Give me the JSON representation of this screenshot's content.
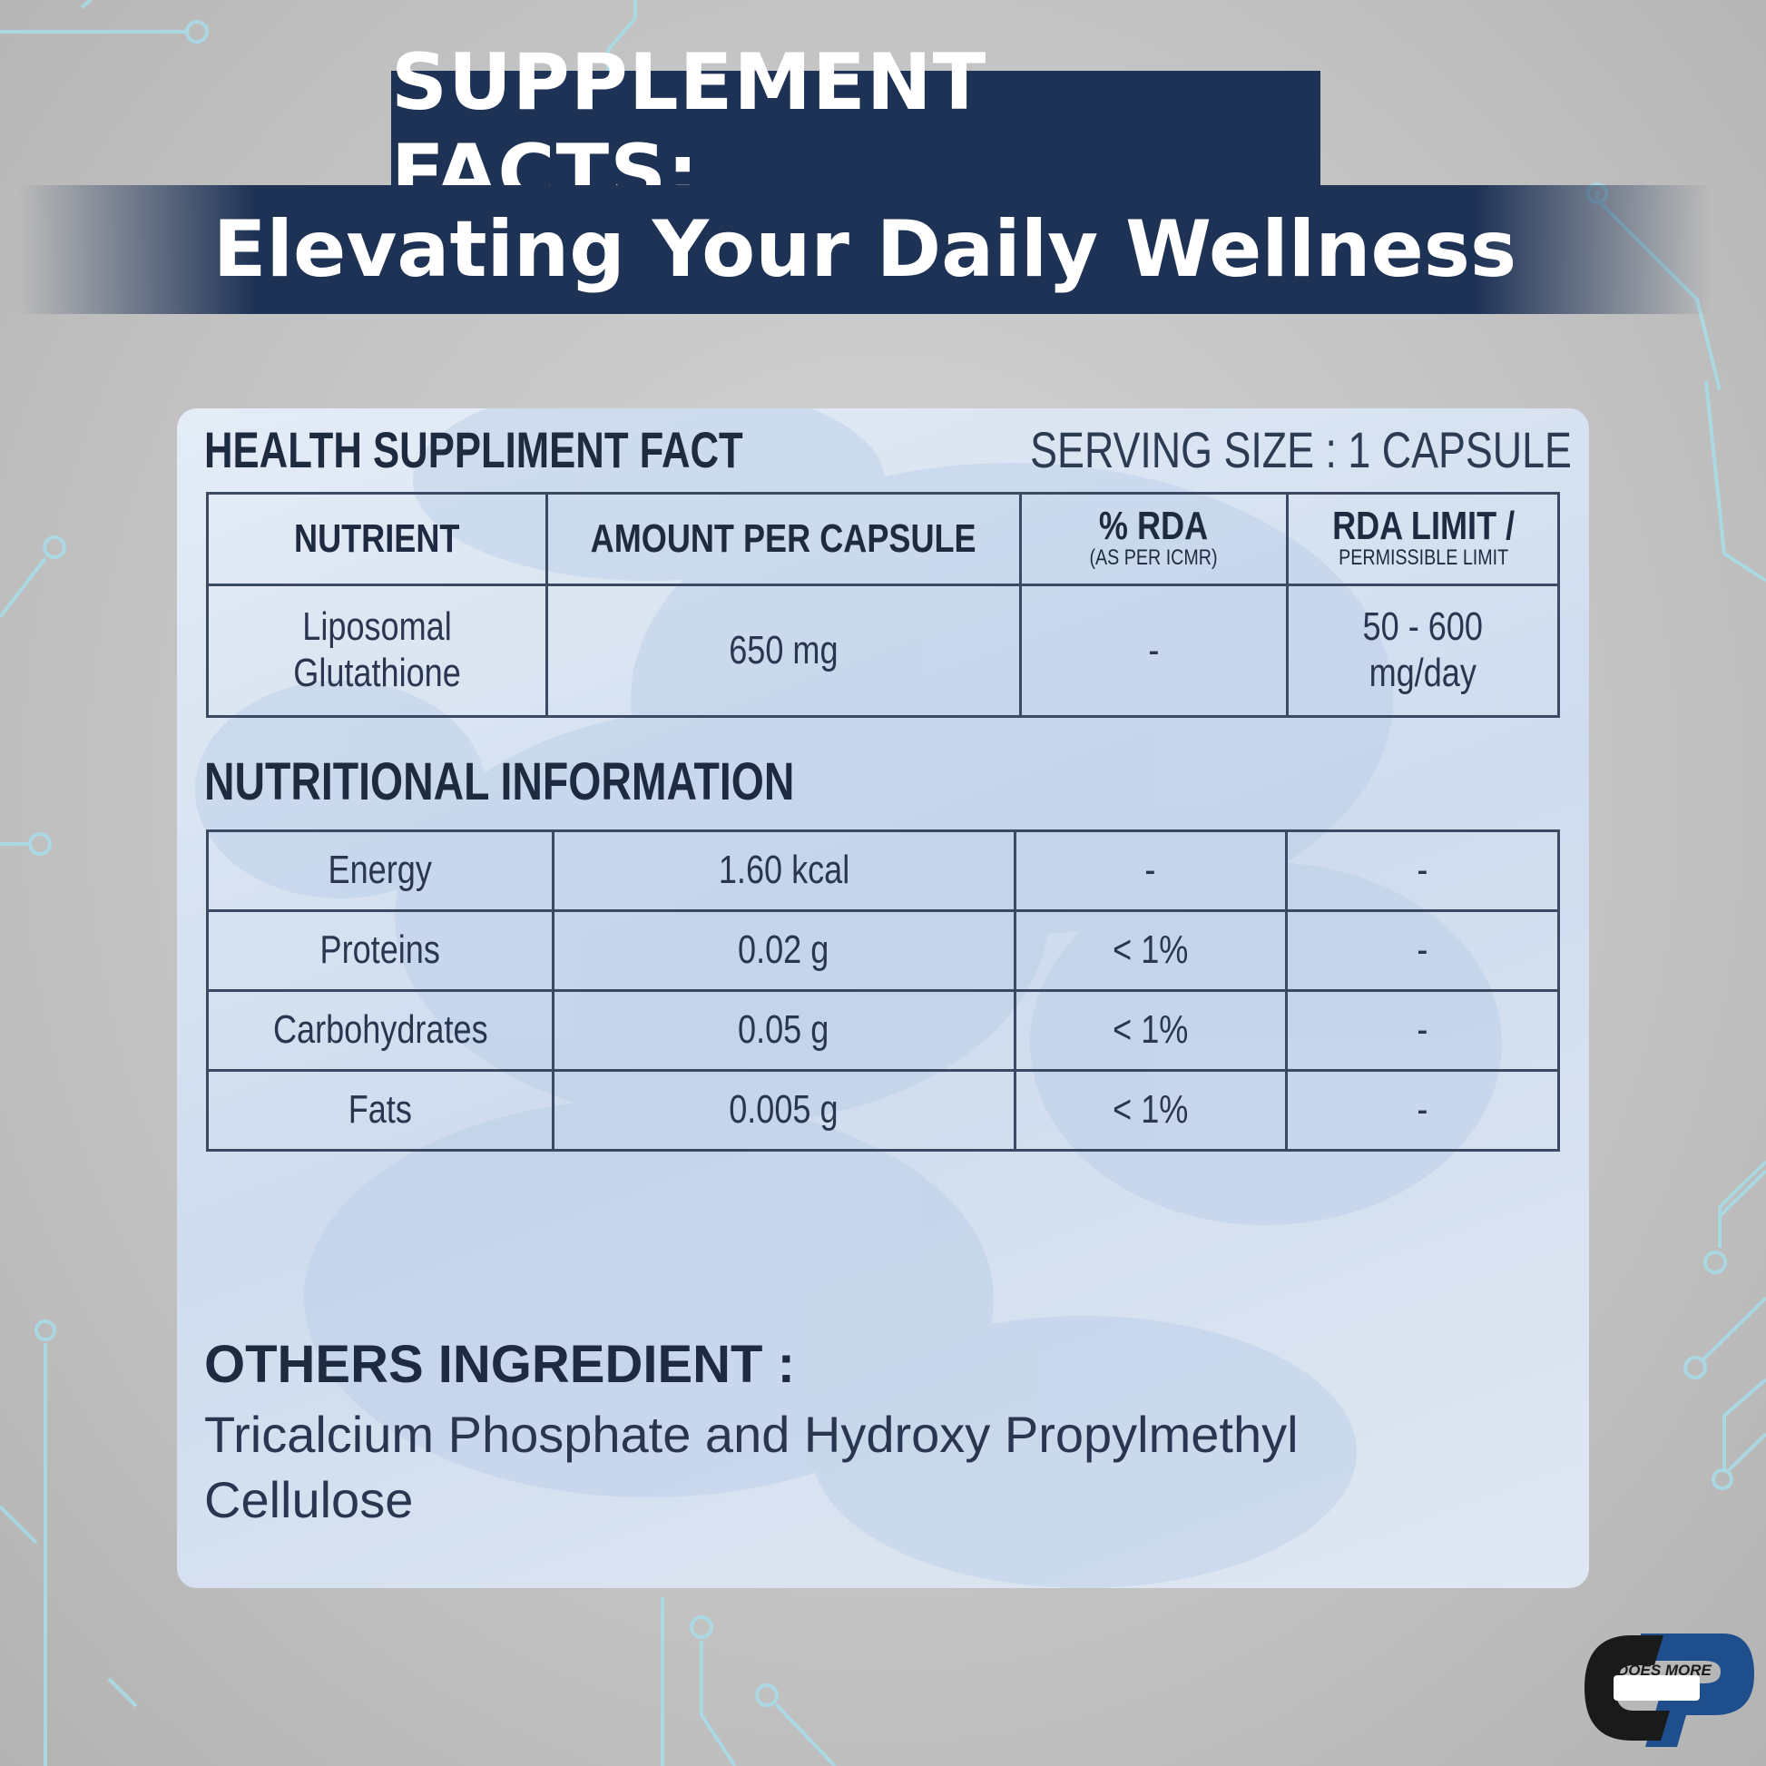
{
  "header": {
    "title": "SUPPLEMENT FACTS:",
    "subtitle": "Elevating Your Daily Wellness"
  },
  "panel": {
    "heading": "HEALTH SUPPLIMENT FACT",
    "serving_size": "SERVING SIZE : 1 CAPSULE",
    "columns": {
      "nutrient": "NUTRIENT",
      "amount": "AMOUNT PER CAPSULE",
      "rda": "% RDA",
      "rda_note": "(AS PER ICMR)",
      "limit": "RDA LIMIT /",
      "limit_note": "PERMISSIBLE LIMIT"
    },
    "main_row": {
      "nutrient_line1": "Liposomal",
      "nutrient_line2": "Glutathione",
      "amount": "650 mg",
      "rda": "-",
      "limit_line1": "50 - 600",
      "limit_line2": "mg/day"
    },
    "nutrition_title": "NUTRITIONAL INFORMATION",
    "nutrition": [
      {
        "name": "Energy",
        "amount": "1.60 kcal",
        "rda": "-",
        "limit": "-"
      },
      {
        "name": "Proteins",
        "amount": "0.02 g",
        "rda": "< 1%",
        "limit": "-"
      },
      {
        "name": "Carbohydrates",
        "amount": "0.05 g",
        "rda": "< 1%",
        "limit": "-"
      },
      {
        "name": "Fats",
        "amount": "0.005 g",
        "rda": "< 1%",
        "limit": "-"
      }
    ],
    "others_title": "OTHERS INGREDIENT :",
    "others_text": "Tricalcium Phosphate and Hydroxy Propylmethyl Cellulose"
  },
  "logo": {
    "tagline": "DOES MORE",
    "colors": {
      "dark": "#1a1a1a",
      "blue": "#1f4e8c"
    }
  },
  "colors": {
    "navy": "#1e3256",
    "background": "#c4c4c4",
    "circuit": "#a9dbe6",
    "text": "#1e2a40"
  }
}
